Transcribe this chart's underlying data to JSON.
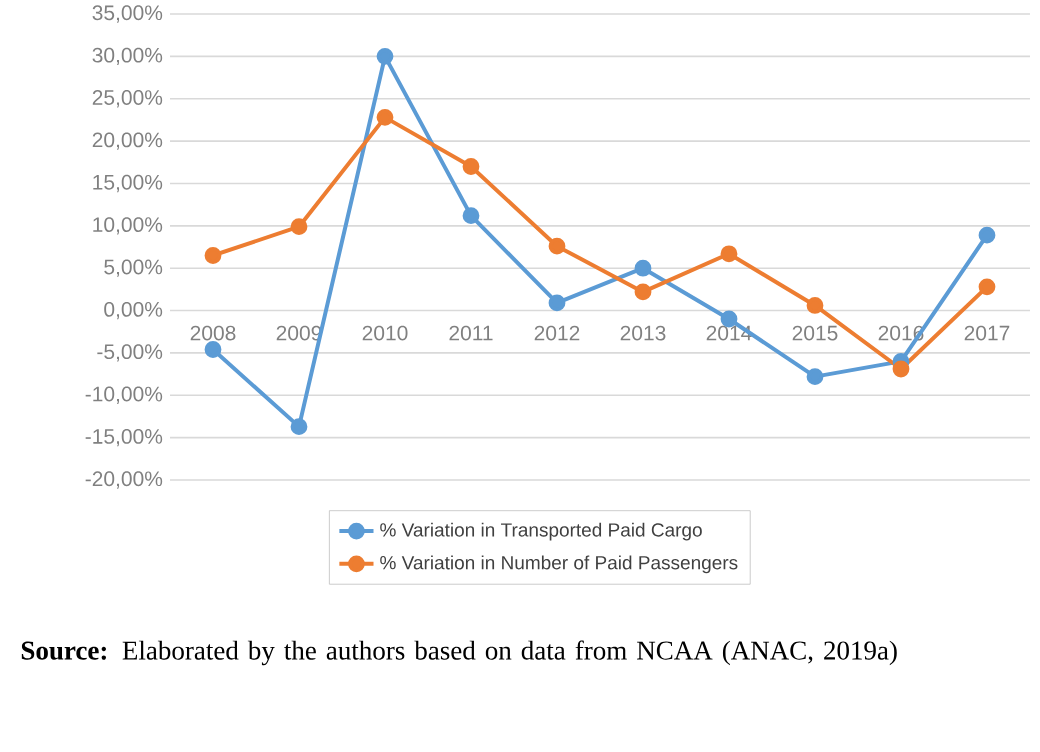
{
  "chart_data": {
    "type": "line",
    "categories": [
      "2008",
      "2009",
      "2010",
      "2011",
      "2012",
      "2013",
      "2014",
      "2015",
      "2016",
      "2017"
    ],
    "series": [
      {
        "name": "% Variation in Transported Paid Cargo",
        "color": "#5b9bd5",
        "values": [
          -4.6,
          -13.7,
          30.0,
          11.2,
          0.9,
          5.0,
          -1.0,
          -7.8,
          -6.0,
          8.9
        ]
      },
      {
        "name": "% Variation in Number of Paid Passengers",
        "color": "#ed7d31",
        "values": [
          6.5,
          9.9,
          22.8,
          17.0,
          7.6,
          2.2,
          6.7,
          0.6,
          -6.9,
          2.8
        ]
      }
    ],
    "ylim": [
      -20,
      35
    ],
    "yticks": [
      {
        "value": -20,
        "label": "-20,00%"
      },
      {
        "value": -15,
        "label": "-15,00%"
      },
      {
        "value": -10,
        "label": "-10,00%"
      },
      {
        "value": -5,
        "label": "-5,00%"
      },
      {
        "value": 0,
        "label": "0,00%"
      },
      {
        "value": 5,
        "label": "5,00%"
      },
      {
        "value": 10,
        "label": "10,00%"
      },
      {
        "value": 15,
        "label": "15,00%"
      },
      {
        "value": 20,
        "label": "20,00%"
      },
      {
        "value": 25,
        "label": "25,00%"
      },
      {
        "value": 30,
        "label": "30,00%"
      },
      {
        "value": 35,
        "label": "35,00%"
      }
    ],
    "grid": "y",
    "legend": "bottom",
    "marker": "circle",
    "line_style": "solid",
    "annotations": [
      "**Source:** Elaborated by the authors based on data from NCAA (ANAC, 2019a)"
    ]
  }
}
